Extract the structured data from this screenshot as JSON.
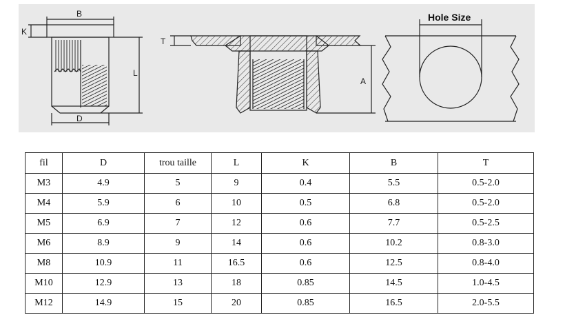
{
  "drawing": {
    "label_B": "B",
    "label_K": "K",
    "label_L": "L",
    "label_D": "D",
    "label_T": "T",
    "label_A": "A",
    "hole_size_label": "Hole Size"
  },
  "table": {
    "headers": [
      "fil",
      "D",
      "trou taille",
      "L",
      "K",
      "B",
      "T"
    ],
    "rows": [
      [
        "M3",
        "4.9",
        "5",
        "9",
        "0.4",
        "5.5",
        "0.5-2.0"
      ],
      [
        "M4",
        "5.9",
        "6",
        "10",
        "0.5",
        "6.8",
        "0.5-2.0"
      ],
      [
        "M5",
        "6.9",
        "7",
        "12",
        "0.6",
        "7.7",
        "0.5-2.5"
      ],
      [
        "M6",
        "8.9",
        "9",
        "14",
        "0.6",
        "10.2",
        "0.8-3.0"
      ],
      [
        "M8",
        "10.9",
        "11",
        "16.5",
        "0.6",
        "12.5",
        "0.8-4.0"
      ],
      [
        "M10",
        "12.9",
        "13",
        "18",
        "0.85",
        "14.5",
        "1.0-4.5"
      ],
      [
        "M12",
        "14.9",
        "15",
        "20",
        "0.85",
        "16.5",
        "2.0-5.5"
      ]
    ]
  }
}
